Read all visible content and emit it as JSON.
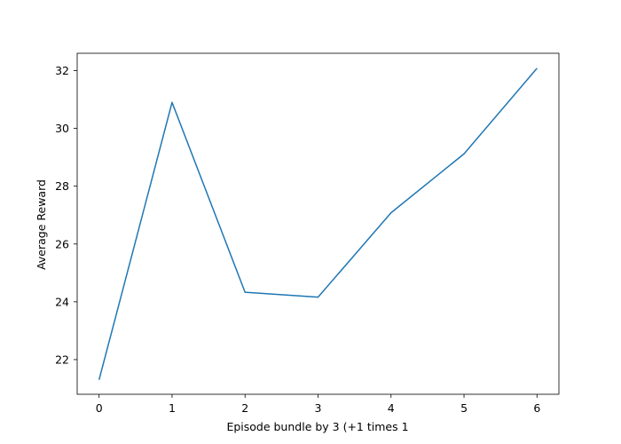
{
  "chart_data": {
    "type": "line",
    "title": "",
    "xlabel": "Episode bundle by 3 (+1 times 1",
    "ylabel": "Average Reward",
    "x": [
      0,
      1,
      2,
      3,
      4,
      5,
      6
    ],
    "series": [
      {
        "values": [
          21.3,
          30.9,
          24.33,
          24.16,
          27.08,
          29.12,
          32.08
        ],
        "color": "#1f77b4"
      }
    ],
    "xlim": [
      -0.3,
      6.3
    ],
    "ylim": [
      20.8,
      32.6
    ],
    "xticks": [
      0,
      1,
      2,
      3,
      4,
      5,
      6
    ],
    "xtick_labels": [
      "0",
      "1",
      "2",
      "3",
      "4",
      "5",
      "6"
    ],
    "yticks": [
      22,
      24,
      26,
      28,
      30,
      32
    ],
    "ytick_labels": [
      "22",
      "24",
      "26",
      "28",
      "30",
      "32"
    ],
    "grid": false,
    "legend": "none"
  }
}
